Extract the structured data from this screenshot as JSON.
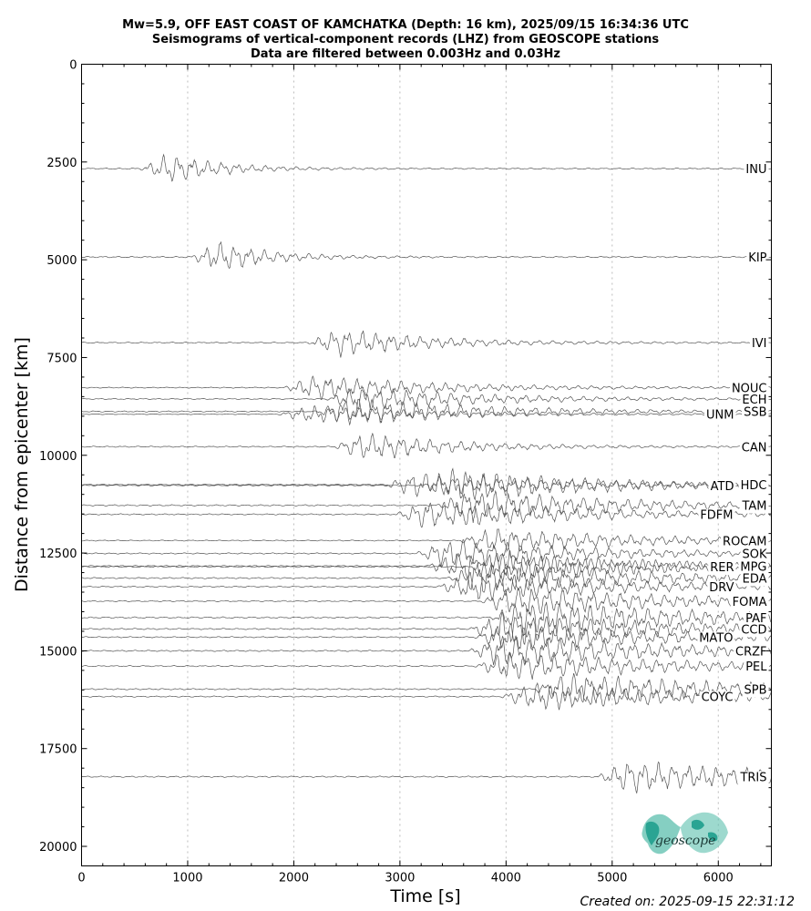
{
  "title_lines": [
    "Mw=5.9, OFF EAST COAST OF KAMCHATKA (Depth: 16 km), 2025/09/15 16:34:36 UTC",
    "Seismograms of vertical-component records (LHZ) from GEOSCOPE stations",
    "Data are filtered between 0.003Hz and 0.03Hz"
  ],
  "created_on": "Created on: 2025-09-15 22:31:12",
  "logo": {
    "text": "geoscope",
    "color": "#2aa493"
  },
  "chart_data": {
    "type": "line",
    "xlabel": "Time [s]",
    "ylabel": "Distance from epicenter [km]",
    "xlim": [
      0,
      6500
    ],
    "ylim": [
      20500,
      0
    ],
    "y_inverted": true,
    "xticks": [
      0,
      1000,
      2000,
      3000,
      4000,
      5000,
      6000
    ],
    "yticks": [
      0,
      2500,
      5000,
      7500,
      10000,
      12500,
      15000,
      17500,
      20000
    ],
    "grid": "vertical dotted at x ticks",
    "trace_color": "#555555",
    "stations": [
      {
        "name": "INU",
        "distance": 2670,
        "arrival": 800,
        "amp": 0.9,
        "duration": 500
      },
      {
        "name": "KIP",
        "distance": 4930,
        "arrival": 1270,
        "amp": 0.9,
        "duration": 500
      },
      {
        "name": "IVI",
        "distance": 7120,
        "arrival": 2380,
        "amp": 0.8,
        "duration": 900
      },
      {
        "name": "NOUC",
        "distance": 8270,
        "arrival": 2150,
        "amp": 0.7,
        "duration": 1200
      },
      {
        "name": "ECH",
        "distance": 8560,
        "arrival": 2550,
        "amp": 0.7,
        "duration": 1200
      },
      {
        "name": "SSB",
        "distance": 8880,
        "arrival": 2450,
        "amp": 0.8,
        "duration": 1300
      },
      {
        "name": "UNM",
        "distance": 8950,
        "arrival": 2100,
        "amp": 0.5,
        "duration": 1200
      },
      {
        "name": "CAN",
        "distance": 9780,
        "arrival": 2620,
        "amp": 0.8,
        "duration": 900
      },
      {
        "name": "HDC",
        "distance": 10750,
        "arrival": 3100,
        "amp": 0.7,
        "duration": 1500
      },
      {
        "name": "ATD",
        "distance": 10770,
        "arrival": 3450,
        "amp": 0.9,
        "duration": 1500
      },
      {
        "name": "TAM",
        "distance": 11280,
        "arrival": 3600,
        "amp": 0.9,
        "duration": 1500
      },
      {
        "name": "FDFM",
        "distance": 11510,
        "arrival": 3200,
        "amp": 0.8,
        "duration": 1600
      },
      {
        "name": "ROCAM",
        "distance": 12180,
        "arrival": 3800,
        "amp": 0.7,
        "duration": 1500
      },
      {
        "name": "SOK",
        "distance": 12510,
        "arrival": 3400,
        "amp": 0.8,
        "duration": 1500
      },
      {
        "name": "MPG",
        "distance": 12830,
        "arrival": 3500,
        "amp": 0.8,
        "duration": 1600
      },
      {
        "name": "RER",
        "distance": 12850,
        "arrival": 3900,
        "amp": 0.9,
        "duration": 1600
      },
      {
        "name": "EDA",
        "distance": 13140,
        "arrival": 3700,
        "amp": 0.9,
        "duration": 1600
      },
      {
        "name": "DRV",
        "distance": 13360,
        "arrival": 3600,
        "amp": 0.8,
        "duration": 1600
      },
      {
        "name": "FOMA",
        "distance": 13730,
        "arrival": 4000,
        "amp": 0.8,
        "duration": 1800
      },
      {
        "name": "PAF",
        "distance": 14150,
        "arrival": 4100,
        "amp": 1.0,
        "duration": 1800
      },
      {
        "name": "CCD",
        "distance": 14440,
        "arrival": 3900,
        "amp": 0.9,
        "duration": 1800
      },
      {
        "name": "MATO",
        "distance": 14650,
        "arrival": 3950,
        "amp": 0.8,
        "duration": 1700
      },
      {
        "name": "CRZF",
        "distance": 15000,
        "arrival": 3900,
        "amp": 0.9,
        "duration": 1800
      },
      {
        "name": "PEL",
        "distance": 15390,
        "arrival": 3950,
        "amp": 0.8,
        "duration": 1700
      },
      {
        "name": "SPB",
        "distance": 15980,
        "arrival": 4500,
        "amp": 0.9,
        "duration": 1800
      },
      {
        "name": "COYC",
        "distance": 16170,
        "arrival": 4200,
        "amp": 0.8,
        "duration": 1700
      },
      {
        "name": "TRIS",
        "distance": 18220,
        "arrival": 5100,
        "amp": 0.9,
        "duration": 1600
      }
    ]
  }
}
